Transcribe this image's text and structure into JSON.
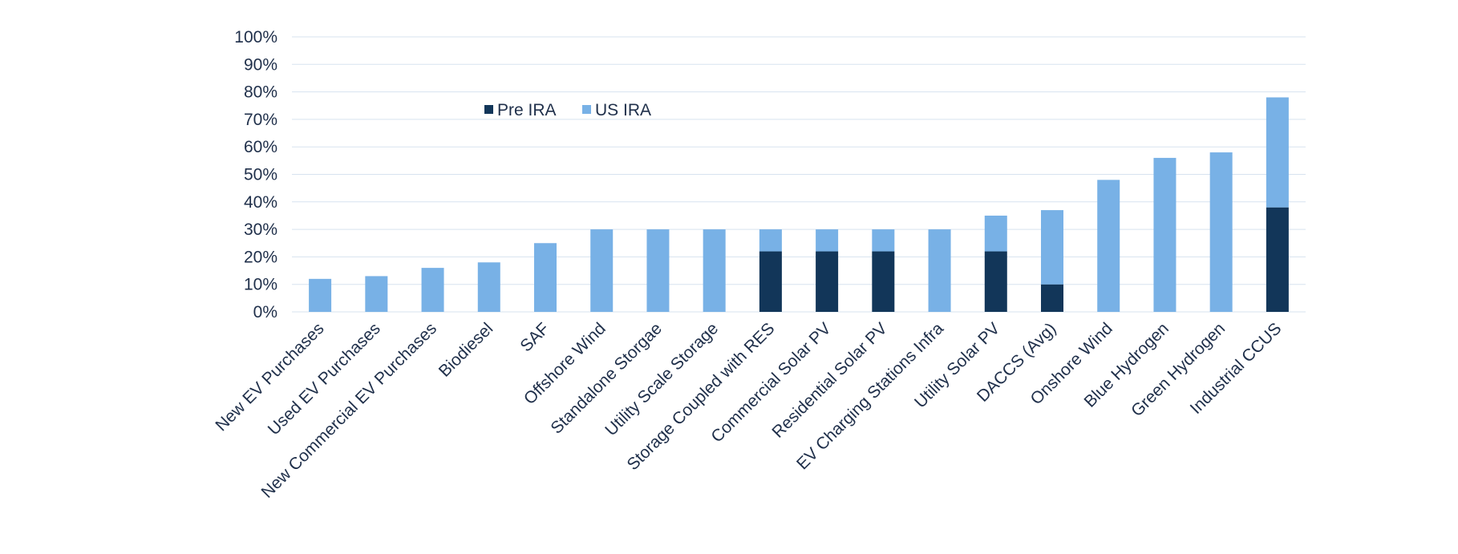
{
  "chart_data": {
    "type": "bar",
    "stacked": true,
    "title": "",
    "xlabel": "",
    "ylabel": "",
    "ylim": [
      0,
      100
    ],
    "y_ticks": [
      0,
      10,
      20,
      30,
      40,
      50,
      60,
      70,
      80,
      90,
      100
    ],
    "y_tick_format": "percent",
    "grid": true,
    "legend_position": "upper-left inside plot",
    "categories": [
      "New EV Purchases",
      "Used EV Purchases",
      "New Commercial EV Purchases",
      "Biodiesel",
      "SAF",
      "Offshore Wind",
      "Standalone Storgae",
      "Utility Scale Storage",
      "Storage Coupled with RES",
      "Commercial Solar PV",
      "Residential Solar PV",
      "EV Charging Stations Infra",
      "Utility Solar PV",
      "DACCS (Avg)",
      "Onshore Wind",
      "Blue Hydrogen",
      "Green Hydrogen",
      "Industrial CCUS"
    ],
    "series": [
      {
        "name": "Pre IRA",
        "color": "#123659",
        "values": [
          0,
          0,
          0,
          0,
          0,
          0,
          0,
          0,
          22,
          22,
          22,
          0,
          22,
          10,
          0,
          0,
          0,
          38
        ]
      },
      {
        "name": "US IRA",
        "color": "#78b1e6",
        "values": [
          12,
          13,
          16,
          18,
          25,
          30,
          30,
          30,
          8,
          8,
          8,
          30,
          13,
          27,
          48,
          56,
          58,
          40
        ]
      }
    ]
  }
}
